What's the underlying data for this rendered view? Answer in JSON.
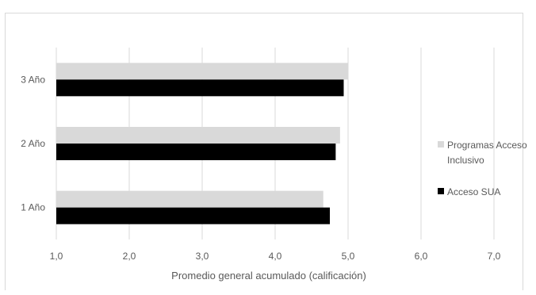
{
  "chart_data": {
    "type": "bar",
    "orientation": "horizontal",
    "categories": [
      "1 Año",
      "2 Año",
      "3 Año"
    ],
    "series": [
      {
        "name": "Programas Acceso Inclusivo",
        "color": "#d9d9d9",
        "values": [
          4.66,
          4.89,
          5.0
        ]
      },
      {
        "name": "Acceso SUA",
        "color": "#000000",
        "values": [
          4.75,
          4.83,
          4.94
        ]
      }
    ],
    "xlabel": "Promedio general acumulado (calificación)",
    "ylabel": "",
    "xlim": [
      1.0,
      7.0
    ],
    "xticks": [
      "1,0",
      "2,0",
      "3,0",
      "4,0",
      "5,0",
      "6,0",
      "7,0"
    ],
    "grid": "vertical",
    "legend_position": "right"
  }
}
